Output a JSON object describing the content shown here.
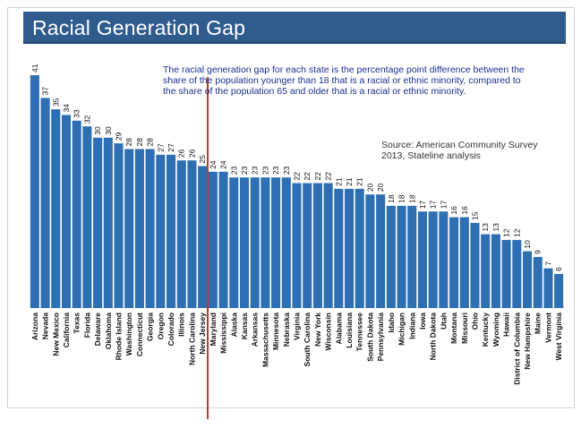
{
  "header": {
    "title": "Racial Generation Gap"
  },
  "annotations": {
    "note": "The racial generation gap for each state is the percentage point difference between the share of the population younger than 18 that is a racial or ethnic minority, compared to the share of the population 65 and older that is a racial or ethnic minority.",
    "source_line1": "Source: American Community Survey",
    "source_line2": "2013, Stateline analysis"
  },
  "colors": {
    "bar": "#2e6fb4",
    "divider": "#c0392b",
    "header": "#2f5b8d",
    "note": "#1b2f8f"
  },
  "chart_data": {
    "type": "bar",
    "title": "Racial Generation Gap",
    "xlabel": "",
    "ylabel": "",
    "ylim": [
      0,
      41
    ],
    "categories": [
      "Arizona",
      "Nevada",
      "New Mexico",
      "California",
      "Texas",
      "Florida",
      "Delaware",
      "Oklahoma",
      "Rhode Island",
      "Washington",
      "Connecticut",
      "Georgia",
      "Oregon",
      "Colorado",
      "Illinois",
      "North Carolina",
      "New Jersey",
      "Maryland",
      "Mississippi",
      "Alaska",
      "Kansas",
      "Arkansas",
      "Massachusetts",
      "Minnesota",
      "Nebraska",
      "Virginia",
      "South Carolina",
      "New York",
      "Wisconsin",
      "Alabama",
      "Louisiana",
      "Tennessee",
      "South Dakota",
      "Pennsylvania",
      "Idaho",
      "Michigan",
      "Indiana",
      "Iowa",
      "North Dakota",
      "Utah",
      "Montana",
      "Missouri",
      "Ohio",
      "Kentucky",
      "Wyoming",
      "Hawaii",
      "District of Columbia",
      "New Hampshire",
      "Maine",
      "Vermont",
      "West Virginia"
    ],
    "values": [
      41,
      37,
      35,
      34,
      33,
      32,
      30,
      30,
      29,
      28,
      28,
      28,
      27,
      27,
      26,
      26,
      25,
      24,
      24,
      23,
      23,
      23,
      23,
      23,
      23,
      22,
      22,
      22,
      22,
      21,
      21,
      21,
      20,
      20,
      18,
      18,
      18,
      17,
      17,
      17,
      16,
      16,
      15,
      13,
      13,
      12,
      12,
      10,
      9,
      7,
      6
    ],
    "grid": false,
    "legend": "none",
    "divider_after": "New Jersey"
  }
}
